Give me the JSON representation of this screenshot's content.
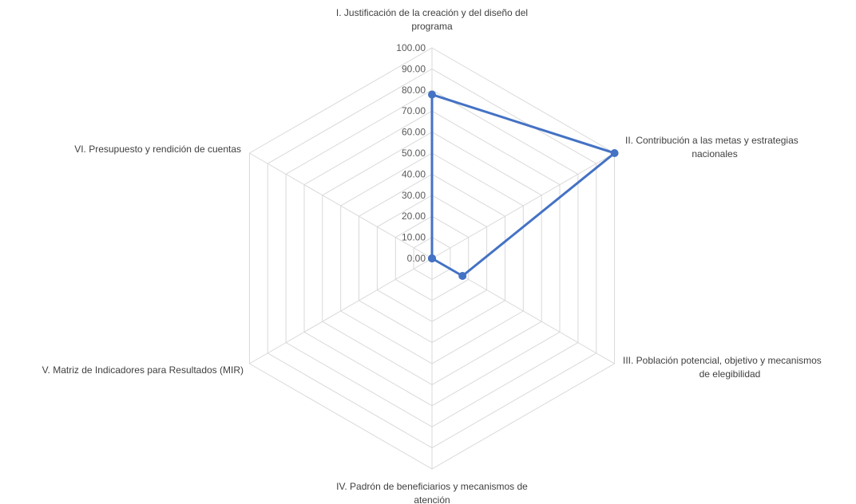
{
  "chart_data": {
    "type": "radar",
    "categories": [
      "I. Justificación de la creación y del diseño del programa",
      "II. Contribución a las metas y estrategias nacionales",
      "III. Población potencial, objetivo y mecanismos de elegibilidad",
      "IV. Padrón de beneficiarios y mecanismos de atención",
      "V. Matriz de Indicadores para Resultados (MIR)",
      "VI. Presupuesto y rendición de cuentas"
    ],
    "category_lines": [
      [
        "I. Justificación de la creación y del diseño del",
        "programa"
      ],
      [
        "II. Contribución a las metas y estrategias",
        "nacionales"
      ],
      [
        "III. Población potencial, objetivo y mecanismos",
        "de elegibilidad"
      ],
      [
        "IV. Padrón de beneficiarios y mecanismos de",
        "atención"
      ],
      [
        "V. Matriz de Indicadores para Resultados (MIR)"
      ],
      [
        "VI. Presupuesto y rendición de cuentas"
      ]
    ],
    "series": [
      {
        "values": [
          77.8,
          100,
          16.7,
          0,
          0,
          0
        ],
        "color": "#4472c4"
      }
    ],
    "rlim": [
      0,
      100
    ],
    "ticks": [
      "0.00",
      "10.00",
      "20.00",
      "30.00",
      "40.00",
      "50.00",
      "60.00",
      "70.00",
      "80.00",
      "90.00",
      "100.00"
    ],
    "grid": true,
    "gridline_color": "#d9d9d9"
  }
}
